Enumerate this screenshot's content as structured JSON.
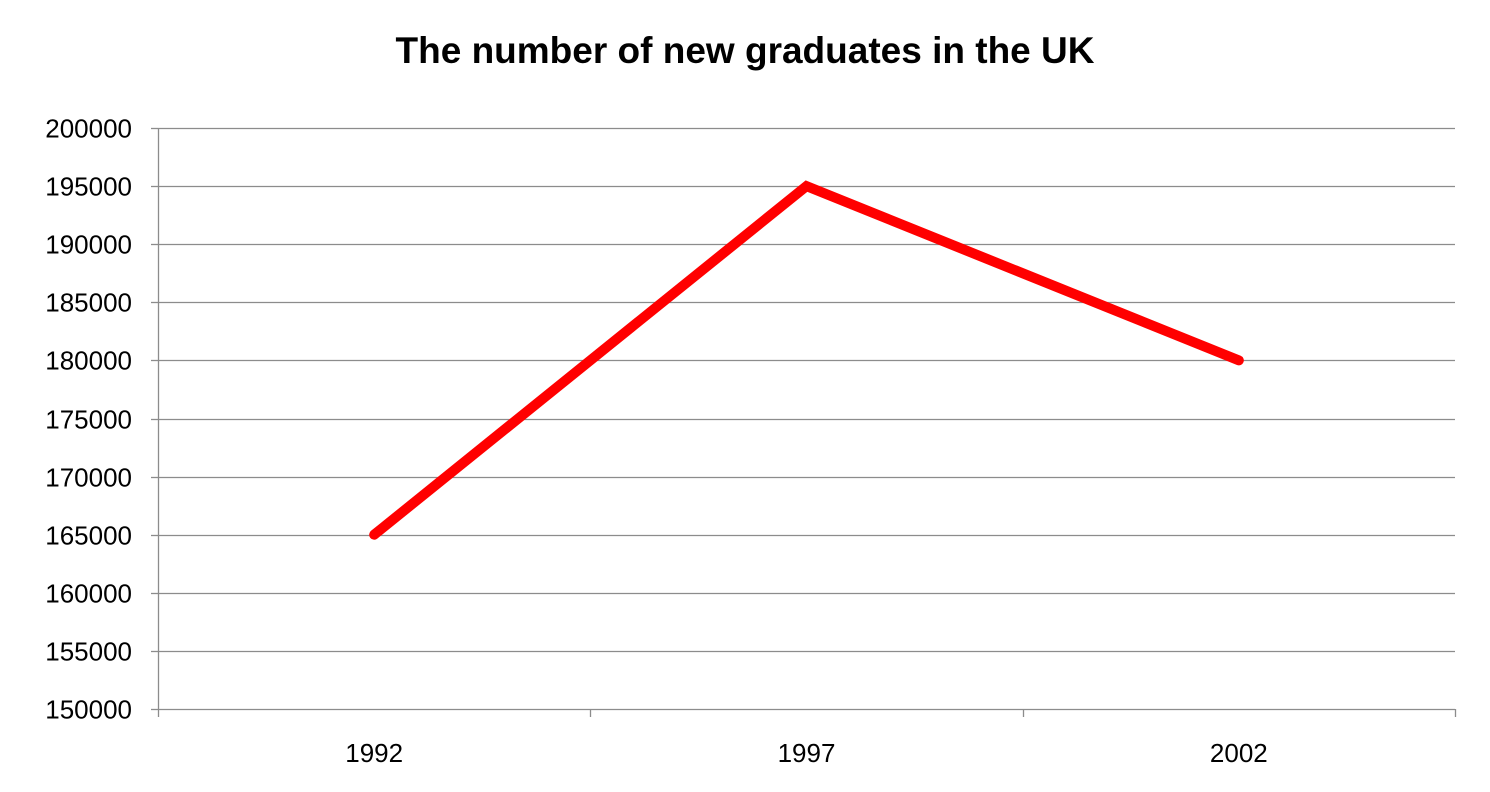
{
  "chart_data": {
    "type": "line",
    "title": "The number of new graduates in the UK",
    "xlabel": "",
    "ylabel": "",
    "categories": [
      "1992",
      "1997",
      "2002"
    ],
    "series": [
      {
        "values": [
          165000,
          195000,
          180000
        ],
        "color": "#ff0000"
      }
    ],
    "ylim": [
      150000,
      200000
    ],
    "y_ticks": [
      "150000",
      "155000",
      "160000",
      "165000",
      "170000",
      "175000",
      "180000",
      "185000",
      "190000",
      "195000",
      "200000"
    ],
    "grid": true,
    "legend": "none"
  },
  "colors": {
    "line": "#ff0000",
    "grid": "#8c8c8c",
    "axis": "#8c8c8c",
    "text": "#000000"
  }
}
